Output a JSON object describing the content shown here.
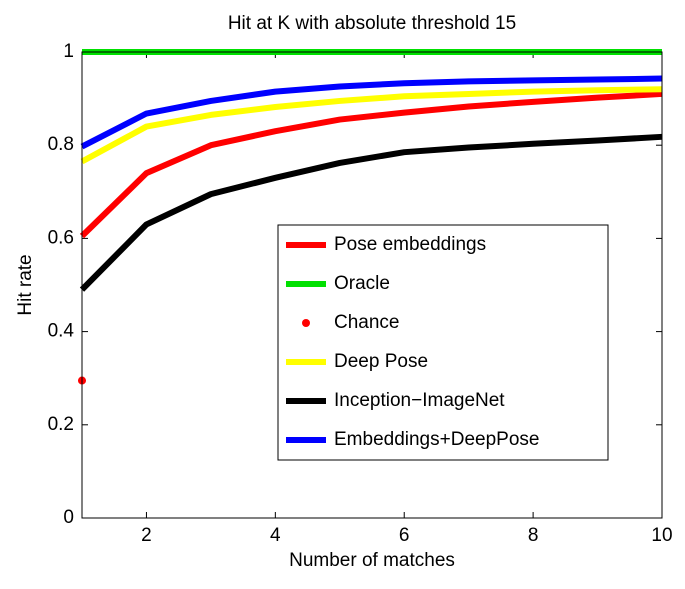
{
  "chart_data": {
    "type": "line",
    "title": "Hit at K with absolute threshold 15",
    "x_label": "Number of matches",
    "y_label": "Hit rate",
    "x": [
      1,
      2,
      3,
      4,
      5,
      6,
      7,
      8,
      9,
      10
    ],
    "xlim": [
      1,
      10
    ],
    "xticks": [
      2,
      4,
      6,
      8,
      10
    ],
    "ylim": [
      0,
      1
    ],
    "yticks": [
      0,
      0.2,
      0.4,
      0.6,
      0.8,
      1
    ],
    "series": [
      {
        "name": "Pose embeddings",
        "color": "#ff0000",
        "style": "line",
        "values": [
          0.605,
          0.74,
          0.8,
          0.83,
          0.855,
          0.87,
          0.883,
          0.893,
          0.902,
          0.91
        ]
      },
      {
        "name": "Oracle",
        "color": "#00e000",
        "style": "line",
        "values": [
          1,
          1,
          1,
          1,
          1,
          1,
          1,
          1,
          1,
          1
        ]
      },
      {
        "name": "Chance",
        "color": "#ff0000",
        "style": "marker",
        "values": [
          0.295,
          null,
          null,
          null,
          null,
          null,
          null,
          null,
          null,
          null
        ]
      },
      {
        "name": "Deep Pose",
        "color": "#ffff00",
        "style": "line",
        "values": [
          0.765,
          0.84,
          0.865,
          0.882,
          0.895,
          0.905,
          0.91,
          0.915,
          0.918,
          0.92
        ]
      },
      {
        "name": "Inception−ImageNet",
        "color": "#000000",
        "style": "line",
        "values": [
          0.49,
          0.63,
          0.695,
          0.73,
          0.762,
          0.785,
          0.795,
          0.803,
          0.81,
          0.818
        ]
      },
      {
        "name": "Embeddings+DeepPose",
        "color": "#0000ff",
        "style": "line",
        "values": [
          0.797,
          0.868,
          0.895,
          0.915,
          0.926,
          0.933,
          0.937,
          0.939,
          0.941,
          0.943
        ]
      }
    ]
  }
}
